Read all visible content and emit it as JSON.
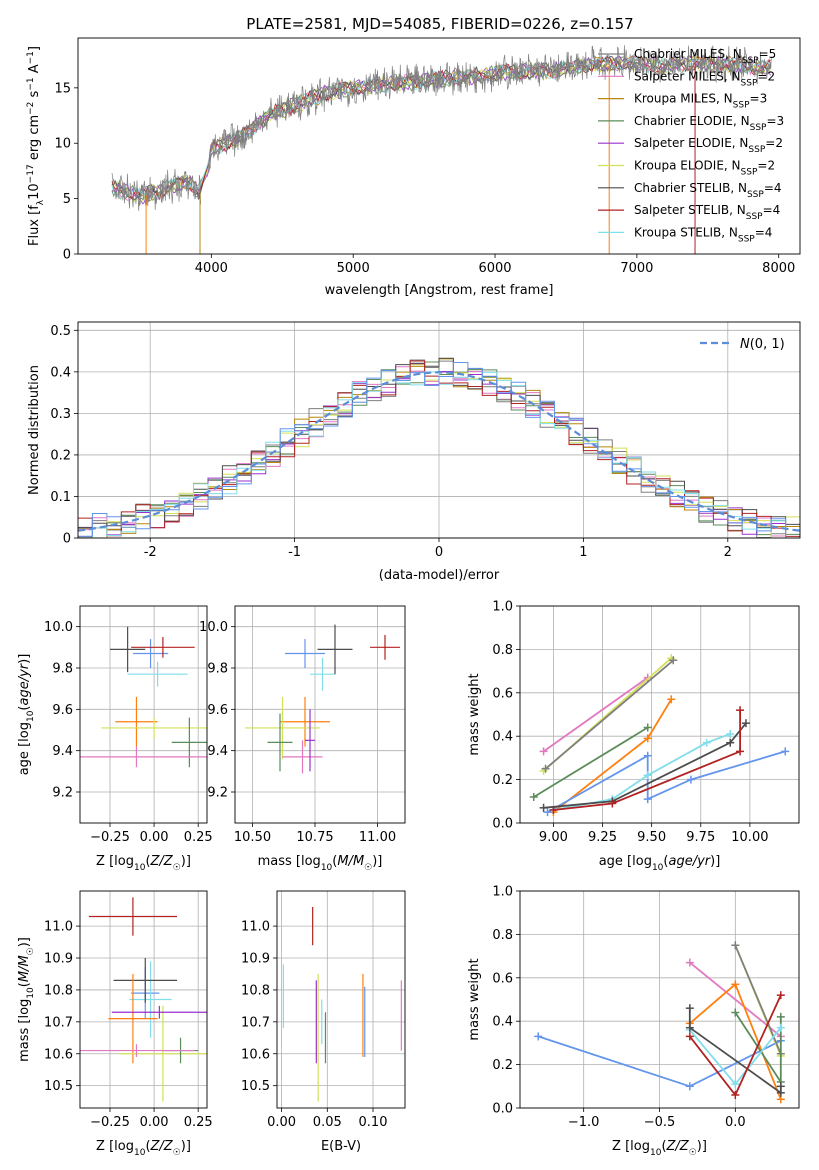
{
  "figure_title": "PLATE=2581, MJD=54085, FIBERID=0226, z=0.157",
  "chart_data": [
    {
      "id": "spectrum",
      "type": "line",
      "xlabel": "wavelength [Angstrom, rest frame]",
      "ylabel": "Flux [f_λ10^-17 erg cm^-2 s^-1 A^-1]",
      "xlim": [
        3060,
        8150
      ],
      "ylim": [
        0,
        19.5
      ],
      "xticks": [
        4000,
        5000,
        6000,
        7000,
        8000
      ],
      "yticks": [
        0,
        5,
        10,
        15
      ],
      "grid": false,
      "legend_position": "top-right",
      "data_series": {
        "name": "data",
        "color": "#808080",
        "x": [
          3300,
          3500,
          3700,
          3850,
          3950,
          4000,
          4200,
          4400,
          4600,
          4800,
          5000,
          5200,
          5400,
          5600,
          5800,
          6000,
          6200,
          6400,
          6600,
          6800,
          7000,
          7200,
          7400,
          7600,
          7800,
          7950
        ],
        "y": [
          6.0,
          5.2,
          6.0,
          6.5,
          5.0,
          9.5,
          10.5,
          12.5,
          13.5,
          14.5,
          15.0,
          15.3,
          15.5,
          15.8,
          16.0,
          16.3,
          16.5,
          16.6,
          17.0,
          17.2,
          17.2,
          17.0,
          17.2,
          17.1,
          17.0,
          16.8
        ]
      },
      "series": [
        {
          "name": "Chabrier MILES, N_SSP=5",
          "label_main": "Chabrier MILES, N",
          "label_sub": "SSP",
          "label_tail": "=5",
          "color": "#7f7f7f"
        },
        {
          "name": "Salpeter MILES, N_SSP=2",
          "label_main": "Salpeter MILES, N",
          "label_sub": "SSP",
          "label_tail": "=2",
          "color": "#e377c2"
        },
        {
          "name": "Kroupa MILES, N_SSP=3",
          "label_main": "Kroupa MILES, N",
          "label_sub": "SSP",
          "label_tail": "=3",
          "color": "#b8860b"
        },
        {
          "name": "Chabrier ELODIE, N_SSP=3",
          "label_main": "Chabrier ELODIE, N",
          "label_sub": "SSP",
          "label_tail": "=3",
          "color": "#5b8c5a"
        },
        {
          "name": "Salpeter ELODIE, N_SSP=2",
          "label_main": "Salpeter ELODIE, N",
          "label_sub": "SSP",
          "label_tail": "=2",
          "color": "#9932cc"
        },
        {
          "name": "Kroupa ELODIE, N_SSP=2",
          "label_main": "Kroupa ELODIE, N",
          "label_sub": "SSP",
          "label_tail": "=2",
          "color": "#d4e157"
        },
        {
          "name": "Chabrier STELIB, N_SSP=4",
          "label_main": "Chabrier STELIB, N",
          "label_sub": "SSP",
          "label_tail": "=4",
          "color": "#4d4d4d"
        },
        {
          "name": "Salpeter STELIB, N_SSP=4",
          "label_main": "Salpeter STELIB, N",
          "label_sub": "SSP",
          "label_tail": "=4",
          "color": "#b22222"
        },
        {
          "name": "Kroupa STELIB, N_SSP=4",
          "label_main": "Kroupa STELIB, N",
          "label_sub": "SSP",
          "label_tail": "=4",
          "color": "#80deea"
        }
      ]
    },
    {
      "id": "residuals",
      "type": "line",
      "xlabel": "(data-model)/error",
      "ylabel": "Normed distribution",
      "xlim": [
        -2.5,
        2.5
      ],
      "ylim": [
        0,
        0.52
      ],
      "xticks": [
        -2,
        -1,
        0,
        1,
        2
      ],
      "yticks": [
        0.0,
        0.1,
        0.2,
        0.3,
        0.4,
        0.5
      ],
      "grid": true,
      "legend_position": "top-right",
      "legend_label": "N(0,1)",
      "gaussian": {
        "mean": 0,
        "sigma": 1,
        "color": "#5b8dd9"
      },
      "hist_colors": [
        "#7f7f7f",
        "#e377c2",
        "#b8860b",
        "#5b8c5a",
        "#9932cc",
        "#d4e157",
        "#4d4d4d",
        "#b22222",
        "#80deea",
        "#6495ed"
      ],
      "bin_width": 0.1
    },
    {
      "id": "age-Z",
      "type": "scatter",
      "xlabel": "Z [log10(Z/Z☉)]",
      "ylabel": "age [log10(age/yr)]",
      "xlim": [
        -0.42,
        0.3
      ],
      "ylim": [
        9.05,
        10.1
      ],
      "xticks": [
        -0.25,
        0.0,
        0.25
      ],
      "xtick_labels": [
        "−0.25",
        "0.00",
        "0.25"
      ],
      "yticks": [
        9.2,
        9.4,
        9.6,
        9.8,
        10.0
      ],
      "ytick_labels": [
        "9.2",
        "9.4",
        "9.6",
        "9.8",
        "10.0"
      ],
      "grid": true,
      "points": [
        {
          "x": -0.02,
          "y": 9.87,
          "xerr": 0.1,
          "yerr": 0.07,
          "color": "#6495ed"
        },
        {
          "x": 0.05,
          "y": 9.9,
          "xerr": 0.18,
          "yerr": 0.05,
          "color": "#b22222"
        },
        {
          "x": 0.02,
          "y": 9.77,
          "xerr": 0.17,
          "yerr": 0.06,
          "color": "#80deea"
        },
        {
          "x": -0.15,
          "y": 9.89,
          "xerr": 0.1,
          "yerr": 0.11,
          "color": "#4d4d4d"
        },
        {
          "x": -0.1,
          "y": 9.54,
          "xerr": 0.12,
          "yerr": 0.12,
          "color": "#ff7f0e"
        },
        {
          "x": 0.0,
          "y": 9.51,
          "xerr": 0.3,
          "yerr": 0.05,
          "color": "#d4e157"
        },
        {
          "x": 0.2,
          "y": 9.44,
          "xerr": 0.1,
          "yerr": 0.12,
          "color": "#5b8c5a"
        },
        {
          "x": -0.1,
          "y": 9.37,
          "xerr": 0.4,
          "yerr": 0.05,
          "color": "#e377c2"
        }
      ]
    },
    {
      "id": "age-mass",
      "type": "scatter",
      "xlabel": "mass [log10(M/M☉)]",
      "ylabel": "",
      "xlim": [
        10.43,
        11.11
      ],
      "ylim": [
        9.05,
        10.1
      ],
      "xticks": [
        10.5,
        10.75,
        11.0
      ],
      "xtick_labels": [
        "10.50",
        "10.75",
        "11.00"
      ],
      "yticks": [
        9.2,
        9.4,
        9.6,
        9.8,
        10.0
      ],
      "ytick_labels": [
        "9.2",
        "9.4",
        "9.6",
        "9.8",
        "10.0"
      ],
      "grid": true,
      "points": [
        {
          "x": 10.71,
          "y": 9.87,
          "xerr": 0.08,
          "yerr": 0.07,
          "color": "#6495ed"
        },
        {
          "x": 11.03,
          "y": 9.9,
          "xerr": 0.06,
          "yerr": 0.06,
          "color": "#b22222"
        },
        {
          "x": 10.78,
          "y": 9.77,
          "xerr": 0.05,
          "yerr": 0.08,
          "color": "#80deea"
        },
        {
          "x": 10.83,
          "y": 9.89,
          "xerr": 0.07,
          "yerr": 0.12,
          "color": "#4d4d4d"
        },
        {
          "x": 10.71,
          "y": 9.54,
          "xerr": 0.1,
          "yerr": 0.12,
          "color": "#ff7f0e"
        },
        {
          "x": 10.62,
          "y": 9.51,
          "xerr": 0.15,
          "yerr": 0.15,
          "color": "#d4e157"
        },
        {
          "x": 10.61,
          "y": 9.44,
          "xerr": 0.05,
          "yerr": 0.14,
          "color": "#5b8c5a"
        },
        {
          "x": 10.7,
          "y": 9.37,
          "xerr": 0.08,
          "yerr": 0.08,
          "color": "#e377c2"
        },
        {
          "x": 10.73,
          "y": 9.45,
          "xerr": 0.02,
          "yerr": 0.15,
          "color": "#9932cc"
        }
      ]
    },
    {
      "id": "mass-weight-vs-age",
      "type": "line",
      "xlabel": "age [log10(age/yr)]",
      "ylabel": "mass weight",
      "xlim": [
        8.83,
        10.25
      ],
      "ylim": [
        0,
        1
      ],
      "xticks": [
        9.0,
        9.25,
        9.5,
        9.75,
        10.0
      ],
      "xtick_labels": [
        "9.00",
        "9.25",
        "9.50",
        "9.75",
        "10.00"
      ],
      "yticks": [
        0.0,
        0.2,
        0.4,
        0.6,
        0.8,
        1.0
      ],
      "ytick_labels": [
        "0.0",
        "0.2",
        "0.4",
        "0.6",
        "0.8",
        "1.0"
      ],
      "grid": true,
      "series": [
        {
          "color": "#e377c2",
          "x": [
            8.95,
            9.48
          ],
          "y": [
            0.33,
            0.67
          ]
        },
        {
          "color": "#d4e157",
          "x": [
            8.95,
            9.6
          ],
          "y": [
            0.24,
            0.76
          ]
        },
        {
          "color": "#7f7f7f",
          "x": [
            8.96,
            9.61
          ],
          "y": [
            0.25,
            0.75
          ]
        },
        {
          "color": "#ff7f0e",
          "x": [
            9.0,
            9.48,
            9.6
          ],
          "y": [
            0.05,
            0.39,
            0.57
          ]
        },
        {
          "color": "#5b8c5a",
          "x": [
            8.9,
            9.48
          ],
          "y": [
            0.12,
            0.44
          ]
        },
        {
          "color": "#6495ed",
          "x": [
            8.97,
            9.48,
            9.48,
            9.7,
            10.18
          ],
          "y": [
            0.05,
            0.31,
            0.11,
            0.2,
            0.33
          ]
        },
        {
          "color": "#80deea",
          "x": [
            9.0,
            9.3,
            9.48,
            9.78,
            9.9
          ],
          "y": [
            0.06,
            0.11,
            0.22,
            0.37,
            0.41
          ]
        },
        {
          "color": "#4d4d4d",
          "x": [
            8.95,
            9.3,
            9.9,
            9.98
          ],
          "y": [
            0.07,
            0.1,
            0.37,
            0.46
          ]
        },
        {
          "color": "#b22222",
          "x": [
            9.0,
            9.3,
            9.95,
            9.95
          ],
          "y": [
            0.06,
            0.09,
            0.33,
            0.52
          ]
        }
      ]
    },
    {
      "id": "mass-Z",
      "type": "scatter",
      "xlabel": "Z [log10(Z/Z☉)]",
      "ylabel": "mass [log10(M/M☉)]",
      "xlim": [
        -0.42,
        0.3
      ],
      "ylim": [
        10.43,
        11.11
      ],
      "xticks": [
        -0.25,
        0.0,
        0.25
      ],
      "xtick_labels": [
        "−0.25",
        "0.00",
        "0.25"
      ],
      "yticks": [
        10.5,
        10.6,
        10.7,
        10.8,
        10.9,
        11.0
      ],
      "ytick_labels": [
        "10.5",
        "10.6",
        "10.7",
        "10.8",
        "10.9",
        "11.0"
      ],
      "grid": true,
      "points": [
        {
          "x": -0.05,
          "y": 10.79,
          "xerr": 0.08,
          "yerr": 0.08,
          "color": "#6495ed"
        },
        {
          "x": -0.12,
          "y": 11.03,
          "xerr": 0.25,
          "yerr": 0.06,
          "color": "#b22222"
        },
        {
          "x": -0.02,
          "y": 10.77,
          "xerr": 0.12,
          "yerr": 0.12,
          "color": "#80deea"
        },
        {
          "x": -0.05,
          "y": 10.83,
          "xerr": 0.18,
          "yerr": 0.07,
          "color": "#4d4d4d"
        },
        {
          "x": -0.12,
          "y": 10.71,
          "xerr": 0.14,
          "yerr": 0.14,
          "color": "#ff7f0e"
        },
        {
          "x": 0.05,
          "y": 10.6,
          "xerr": 0.25,
          "yerr": 0.15,
          "color": "#d4e157"
        },
        {
          "x": 0.15,
          "y": 10.61,
          "xerr": 0.1,
          "yerr": 0.04,
          "color": "#5b8c5a"
        },
        {
          "x": -0.1,
          "y": 10.61,
          "xerr": 0.33,
          "yerr": 0.02,
          "color": "#e377c2"
        },
        {
          "x": 0.03,
          "y": 10.73,
          "xerr": 0.27,
          "yerr": 0.02,
          "color": "#9932cc"
        }
      ]
    },
    {
      "id": "mass-ebv",
      "type": "scatter",
      "xlabel": "E(B-V)",
      "ylabel": "",
      "xlim": [
        -0.005,
        0.135
      ],
      "ylim": [
        10.43,
        11.11
      ],
      "xticks": [
        0.0,
        0.05,
        0.1
      ],
      "xtick_labels": [
        "0.00",
        "0.05",
        "0.10"
      ],
      "yticks": [
        10.5,
        10.6,
        10.7,
        10.8,
        10.9,
        11.0
      ],
      "ytick_labels": [
        "10.5",
        "10.6",
        "10.7",
        "10.8",
        "10.9",
        "11.0"
      ],
      "grid": true,
      "points": [
        {
          "x": 0.002,
          "y": 10.78,
          "xerr": 0,
          "yerr": 0.1,
          "color": "#80deea"
        },
        {
          "x": 0.034,
          "y": 11.0,
          "xerr": 0,
          "yerr": 0.06,
          "color": "#b22222"
        },
        {
          "x": 0.038,
          "y": 10.7,
          "xerr": 0,
          "yerr": 0.13,
          "color": "#9932cc"
        },
        {
          "x": 0.04,
          "y": 10.65,
          "xerr": 0,
          "yerr": 0.2,
          "color": "#d4e157"
        },
        {
          "x": 0.044,
          "y": 10.7,
          "xerr": 0,
          "yerr": 0.07,
          "color": "#80deea"
        },
        {
          "x": 0.048,
          "y": 10.65,
          "xerr": 0,
          "yerr": 0.08,
          "color": "#5b8c5a"
        },
        {
          "x": 0.089,
          "y": 10.72,
          "xerr": 0,
          "yerr": 0.13,
          "color": "#ff7f0e"
        },
        {
          "x": 0.091,
          "y": 10.7,
          "xerr": 0,
          "yerr": 0.11,
          "color": "#6495ed"
        },
        {
          "x": 0.131,
          "y": 10.72,
          "xerr": 0,
          "yerr": 0.11,
          "color": "#e377c2"
        }
      ]
    },
    {
      "id": "mass-weight-vs-Z",
      "type": "line",
      "xlabel": "Z [log10(Z/Z☉)]",
      "ylabel": "mass weight",
      "xlim": [
        -1.42,
        0.42
      ],
      "ylim": [
        0,
        1
      ],
      "xticks": [
        -1.0,
        -0.5,
        0.0
      ],
      "xtick_labels": [
        "−1.0",
        "−0.5",
        "0.0"
      ],
      "yticks": [
        0.0,
        0.2,
        0.4,
        0.6,
        0.8,
        1.0
      ],
      "ytick_labels": [
        "0.0",
        "0.2",
        "0.4",
        "0.6",
        "0.8",
        "1.0"
      ],
      "grid": true,
      "series": [
        {
          "color": "#6495ed",
          "x": [
            -1.3,
            -0.3,
            0.3
          ],
          "y": [
            0.33,
            0.1,
            0.31
          ]
        },
        {
          "color": "#e377c2",
          "x": [
            -0.3,
            0.3
          ],
          "y": [
            0.67,
            0.33
          ]
        },
        {
          "color": "#d4e157",
          "x": [
            0.0,
            0.3
          ],
          "y": [
            0.75,
            0.24
          ]
        },
        {
          "color": "#7f7f7f",
          "x": [
            0.0,
            0.3
          ],
          "y": [
            0.75,
            0.25
          ]
        },
        {
          "color": "#ff7f0e",
          "x": [
            -0.3,
            0.0,
            0.3
          ],
          "y": [
            0.39,
            0.57,
            0.04
          ]
        },
        {
          "color": "#5b8c5a",
          "x": [
            0.0,
            0.3,
            0.3
          ],
          "y": [
            0.44,
            0.12,
            0.42
          ]
        },
        {
          "color": "#80deea",
          "x": [
            -0.3,
            0.0,
            0.3
          ],
          "y": [
            0.36,
            0.11,
            0.37
          ]
        },
        {
          "color": "#4d4d4d",
          "x": [
            -0.3,
            -0.3,
            0.3,
            0.3
          ],
          "y": [
            0.46,
            0.37,
            0.07,
            0.1
          ]
        },
        {
          "color": "#b22222",
          "x": [
            -0.3,
            0.0,
            0.3
          ],
          "y": [
            0.33,
            0.06,
            0.52
          ]
        }
      ]
    }
  ]
}
